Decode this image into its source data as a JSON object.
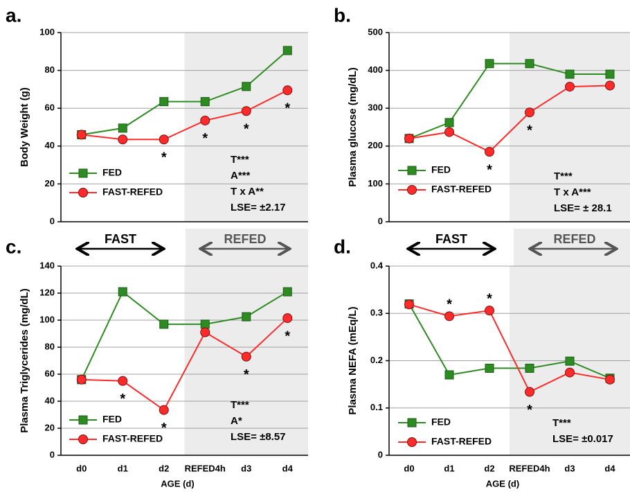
{
  "phase_labels": [
    "FAST",
    "REFED"
  ],
  "chart_data": [
    {
      "type": "line",
      "panel": "a.",
      "ylabel": "Body Weight (g)",
      "series": [
        {
          "name": "FED",
          "color": "#2e8b22",
          "values": [
            46,
            49.5,
            63.5,
            63.5,
            71.5,
            90.5
          ]
        },
        {
          "name": "FAST-REFED",
          "color": "#ff2a2a",
          "values": [
            46,
            43.5,
            43.5,
            53.5,
            58.5,
            69.5
          ]
        }
      ],
      "significance": [
        null,
        null,
        "*",
        "*",
        "*",
        "*"
      ],
      "stats": [
        "T***",
        "A***",
        "T x A**",
        "LSE= ±2.17"
      ],
      "ylim": [
        0,
        100
      ],
      "yticks": [
        0,
        20,
        40,
        60,
        80,
        100
      ],
      "grid": true
    },
    {
      "type": "line",
      "panel": "b.",
      "ylabel": "Plasma glucose (mg/dL)",
      "series": [
        {
          "name": "FED",
          "color": "#2e8b22",
          "values": [
            220,
            262,
            418,
            418,
            390,
            390
          ]
        },
        {
          "name": "FAST-REFED",
          "color": "#ff2a2a",
          "values": [
            220,
            237,
            185,
            289,
            357,
            360
          ]
        }
      ],
      "significance": [
        null,
        null,
        "*",
        "*",
        null,
        null
      ],
      "stats": [
        "T***",
        "T x A***",
        "LSE= ± 28.1"
      ],
      "ylim": [
        0,
        500
      ],
      "yticks": [
        0,
        100,
        200,
        300,
        400,
        500
      ],
      "grid": true
    },
    {
      "type": "line",
      "panel": "c.",
      "ylabel": "Plasma Triglycerides (mg/dL)",
      "xlabel": "AGE (d)",
      "categories": [
        "d0",
        "d1",
        "d2",
        "REFED4h",
        "d3",
        "d4"
      ],
      "series": [
        {
          "name": "FED",
          "color": "#2e8b22",
          "values": [
            56,
            121,
            97,
            97,
            102.5,
            121
          ]
        },
        {
          "name": "FAST-REFED",
          "color": "#ff2a2a",
          "values": [
            56,
            55,
            33.5,
            91,
            73,
            101.5
          ]
        }
      ],
      "significance": [
        null,
        "*",
        "*",
        null,
        "*",
        "*"
      ],
      "stats": [
        "T***",
        "A*",
        "LSE= ±8.57"
      ],
      "ylim": [
        0,
        140
      ],
      "yticks": [
        0,
        20,
        40,
        60,
        80,
        100,
        120,
        140
      ],
      "grid": true
    },
    {
      "type": "line",
      "panel": "d.",
      "ylabel": "Plasma NEFA (mEq/L)",
      "xlabel": "AGE (d)",
      "categories": [
        "d0",
        "d1",
        "d2",
        "REFED4h",
        "d3",
        "d4"
      ],
      "series": [
        {
          "name": "FED",
          "color": "#2e8b22",
          "values": [
            0.32,
            0.17,
            0.184,
            0.184,
            0.199,
            0.163
          ]
        },
        {
          "name": "FAST-REFED",
          "color": "#ff2a2a",
          "values": [
            0.319,
            0.294,
            0.306,
            0.134,
            0.175,
            0.16
          ]
        }
      ],
      "significance": [
        null,
        "*",
        "*",
        "*",
        null,
        null
      ],
      "stats": [
        "T***",
        "LSE= ±0.017"
      ],
      "ylim": [
        0,
        0.4
      ],
      "yticks": [
        0,
        0.1,
        0.2,
        0.3,
        0.4
      ],
      "grid": true
    }
  ]
}
